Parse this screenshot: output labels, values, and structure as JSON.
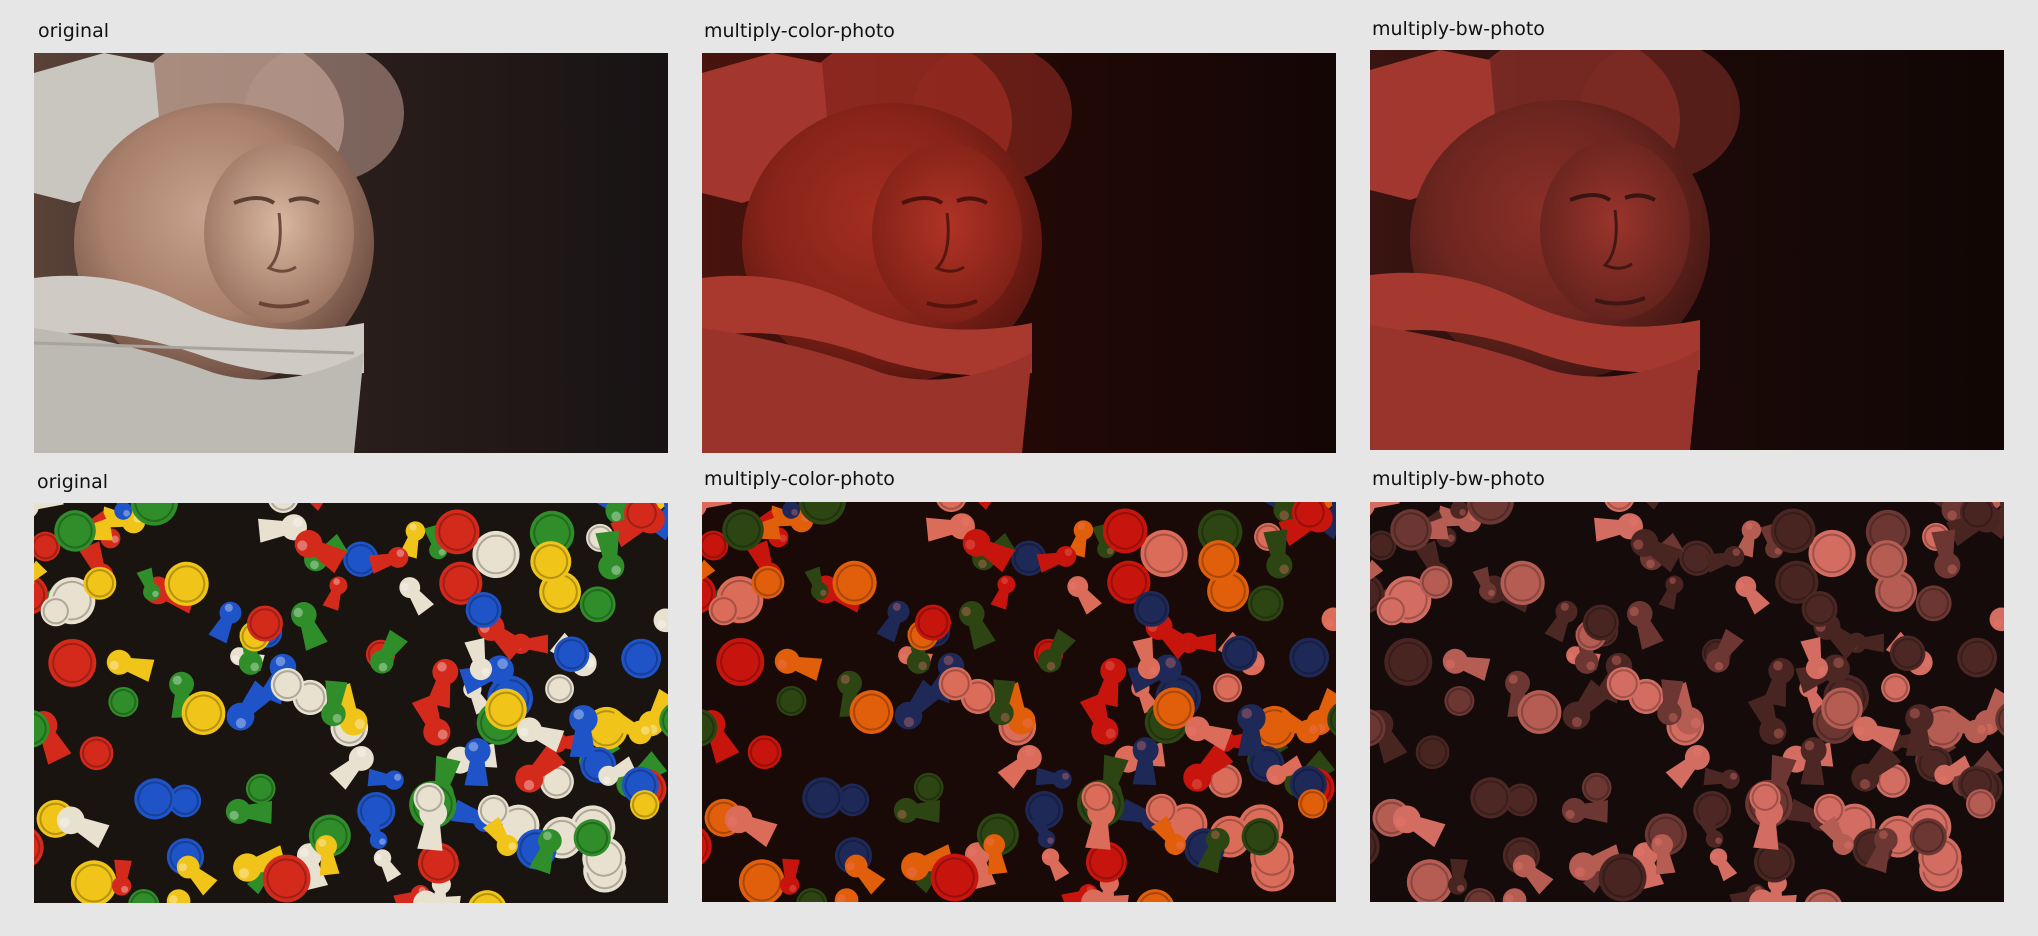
{
  "rows": [
    {
      "cells": [
        {
          "label": "original",
          "image": "egg-face-photo",
          "tint": ""
        },
        {
          "label": "multiply-color-photo",
          "image": "egg-face-photo",
          "tint": "#d0473b"
        },
        {
          "label": "multiply-bw-photo",
          "image": "egg-face-photo",
          "tint": "#d0473b"
        }
      ]
    },
    {
      "cells": [
        {
          "label": "original",
          "image": "game-pieces-photo",
          "tint": ""
        },
        {
          "label": "multiply-color-photo",
          "image": "game-pieces-photo",
          "tint": "#f07a6e"
        },
        {
          "label": "multiply-bw-photo",
          "image": "game-pieces-photo",
          "tint": "#f07a6e"
        }
      ]
    }
  ],
  "colors": {
    "background": "#e6e6e6",
    "tint_red": "#d0473b",
    "tint_pink": "#f07a6e",
    "piece_colors": [
      "#d42a1c",
      "#1f54c9",
      "#2f8e2a",
      "#f0c419",
      "#e9e1cf"
    ]
  }
}
